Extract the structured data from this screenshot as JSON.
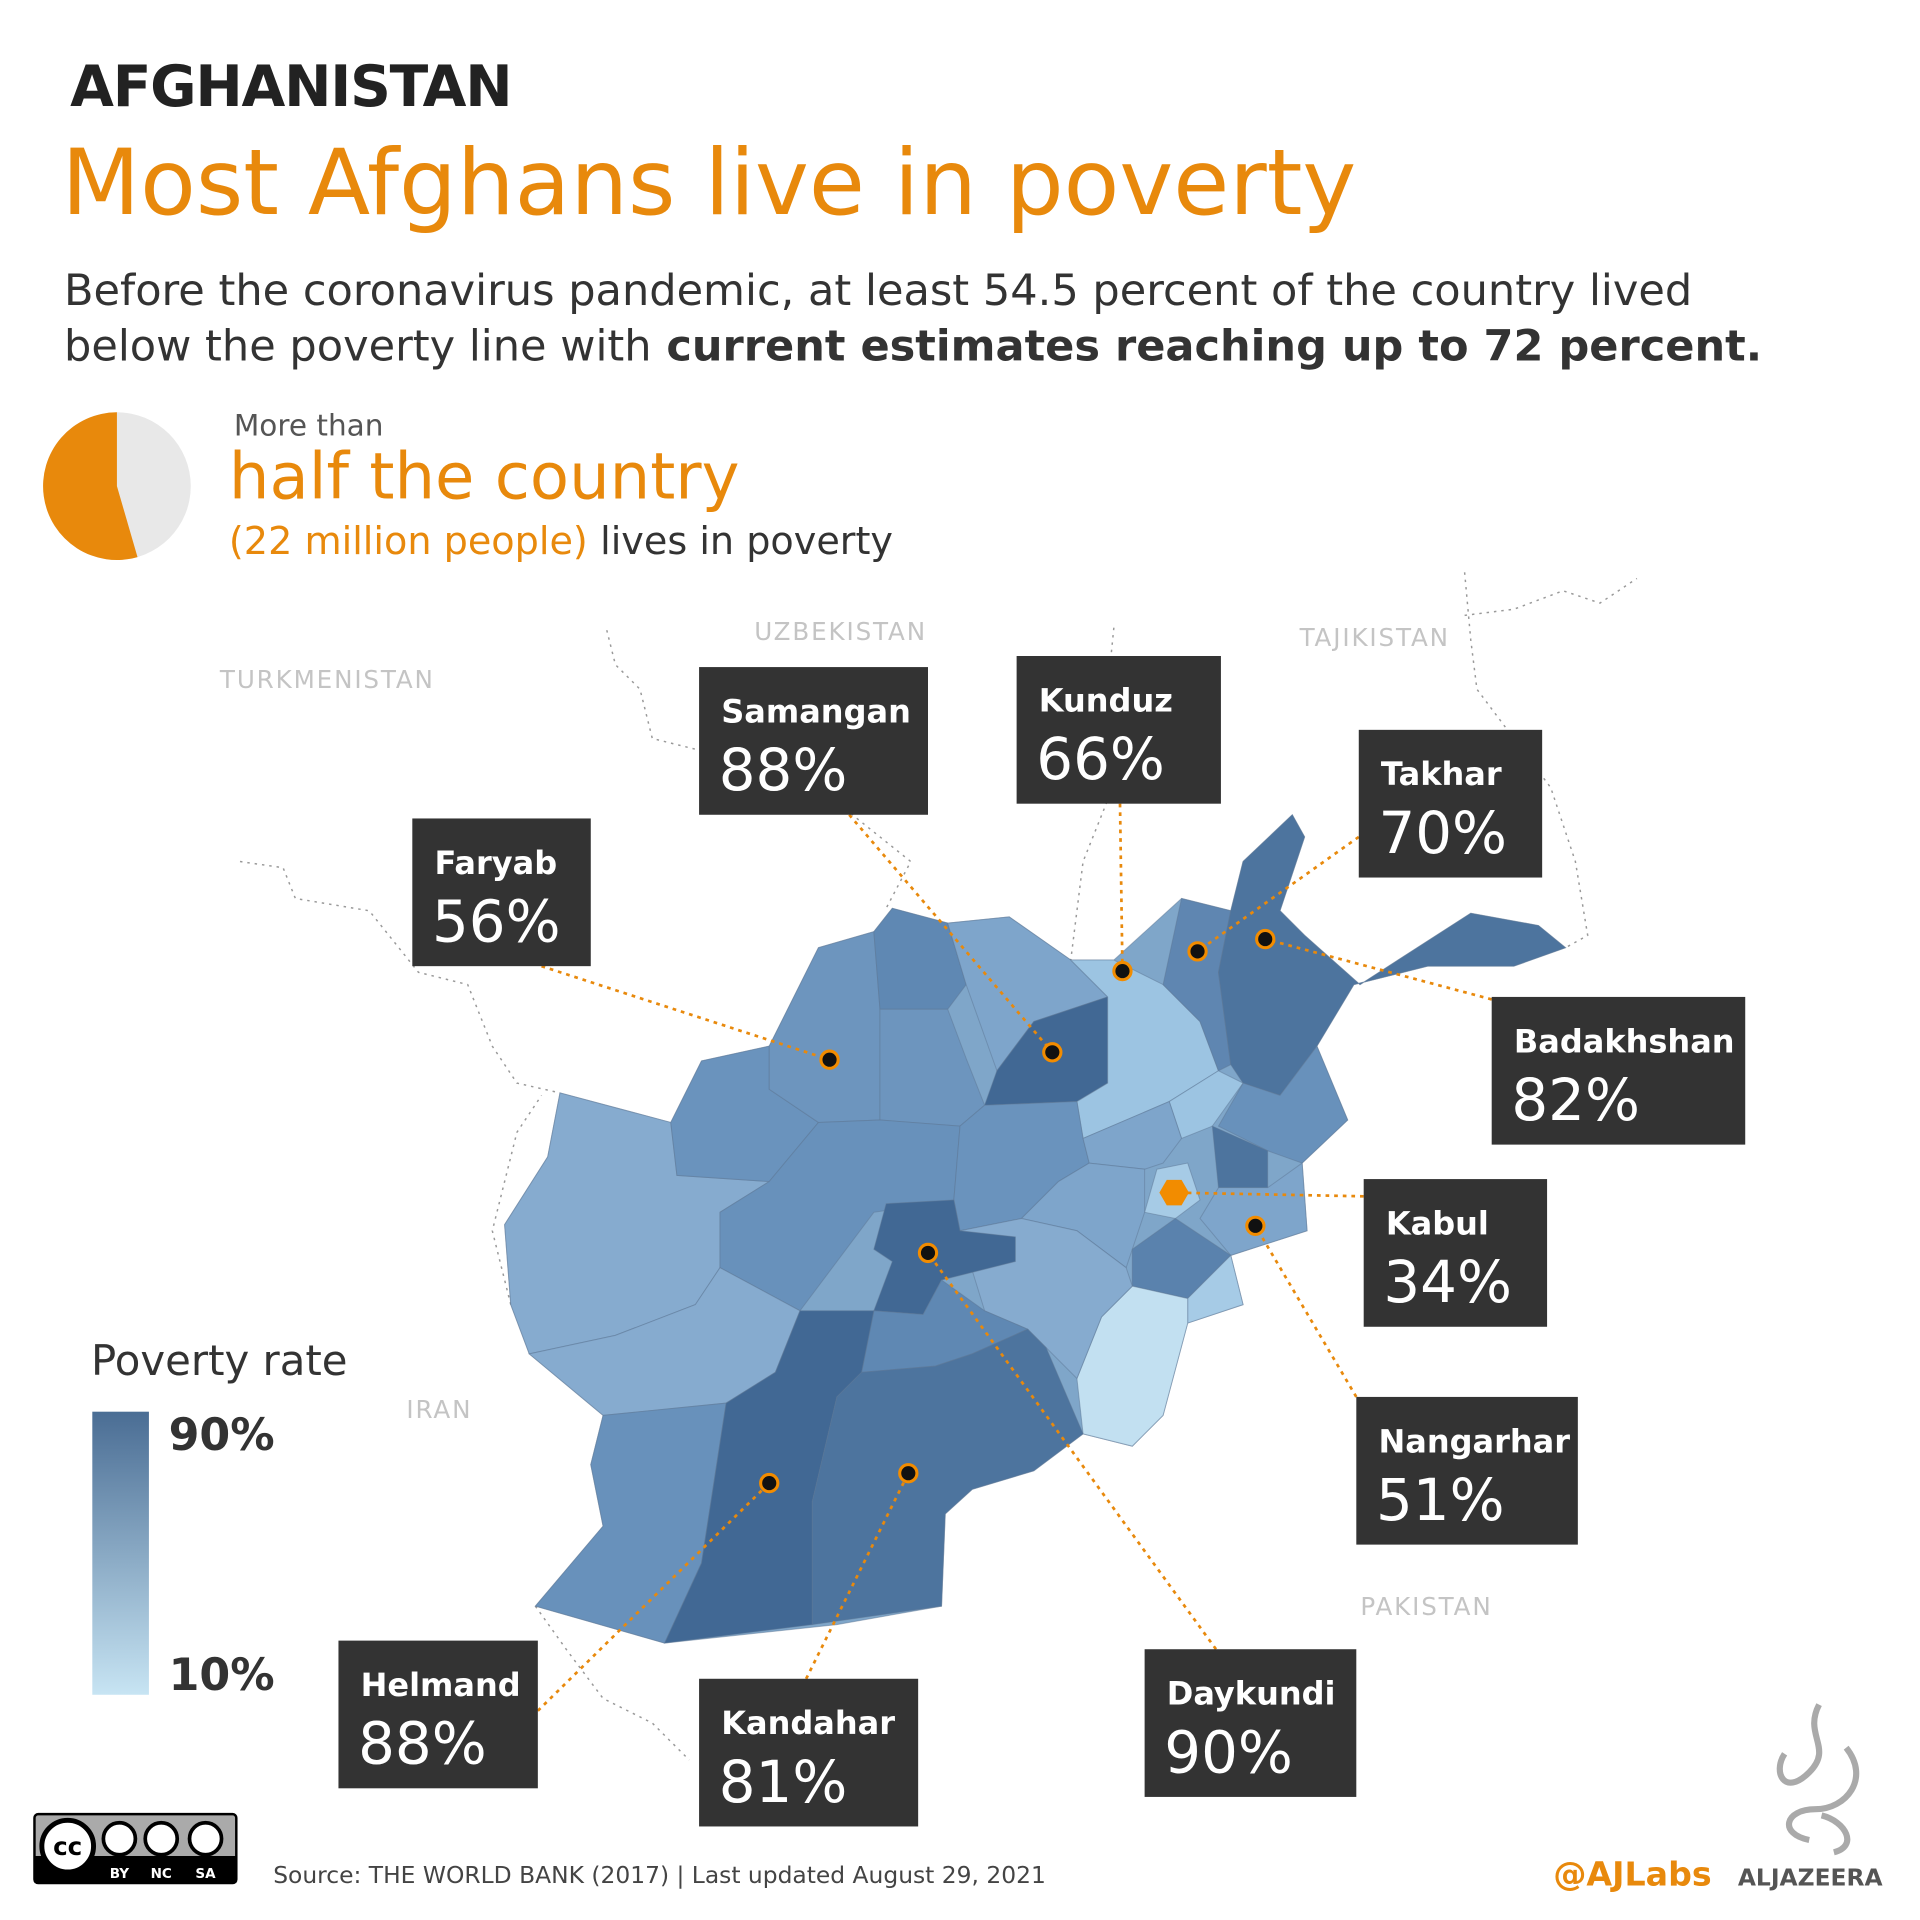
{
  "header": {
    "kicker": "AFGHANISTAN",
    "title": "Most Afghans live in poverty",
    "subtitle": {
      "line1": "Before the coronavirus pandemic, at least 54.5 percent of the country lived",
      "line2": "below the poverty line with",
      "line2_bold": "current estimates reaching up to 72 percent."
    }
  },
  "highlight": {
    "pre": "More than",
    "headline": "half the country",
    "detail_accent": "(22 million people)",
    "detail": "lives in poverty",
    "pie_share": 54.5
  },
  "map": {
    "countries": [
      "UZBEKISTAN",
      "TURKMENISTAN",
      "TAJIKISTAN",
      "IRAN",
      "PAKISTAN"
    ],
    "provinces": [
      {
        "name": "Samangan",
        "rate": "88%"
      },
      {
        "name": "Kunduz",
        "rate": "66%"
      },
      {
        "name": "Takhar",
        "rate": "70%"
      },
      {
        "name": "Faryab",
        "rate": "56%"
      },
      {
        "name": "Badakhshan",
        "rate": "82%"
      },
      {
        "name": "Kabul",
        "rate": "34%"
      },
      {
        "name": "Nangarhar",
        "rate": "51%"
      },
      {
        "name": "Daykundi",
        "rate": "90%"
      },
      {
        "name": "Kandahar",
        "rate": "81%"
      },
      {
        "name": "Helmand",
        "rate": "88%"
      }
    ]
  },
  "legend": {
    "title": "Poverty rate",
    "high": "90%",
    "low": "10%"
  },
  "footer": {
    "license": {
      "symbol": "cc",
      "terms": [
        "BY",
        "NC",
        "SA"
      ]
    },
    "source": "Source: THE WORLD BANK (2017) | Last updated August 29, 2021",
    "handle": "@AJLabs",
    "brand": "ALJAZEERA"
  }
}
